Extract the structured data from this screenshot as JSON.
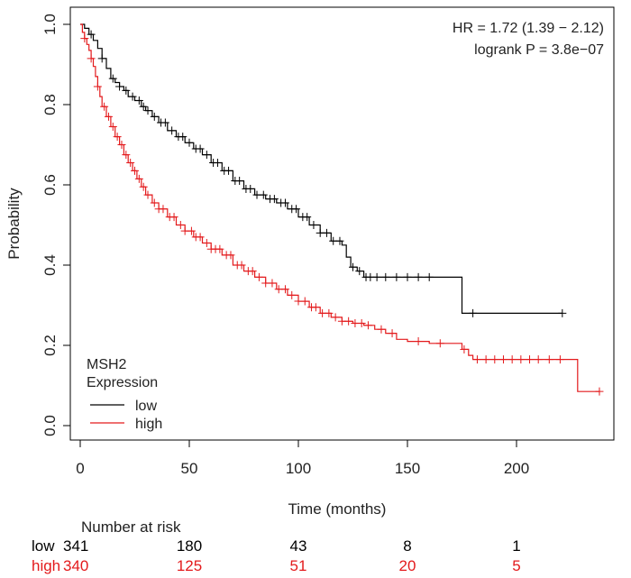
{
  "chart_data": {
    "type": "line",
    "subtype": "kaplan-meier survival curve",
    "xlabel": "Time (months)",
    "ylabel": "Probability",
    "xlim": [
      0,
      240
    ],
    "ylim": [
      -0.02,
      1.02
    ],
    "x_ticks": [
      0,
      50,
      100,
      150,
      200
    ],
    "x_tick_labels": [
      "0",
      "50",
      "100",
      "150",
      "200"
    ],
    "y_ticks": [
      0.0,
      0.2,
      0.4,
      0.6,
      0.8,
      1.0
    ],
    "y_tick_labels": [
      "0.0",
      "0.2",
      "0.4",
      "0.6",
      "0.8",
      "1.0"
    ],
    "grid": false,
    "annotations": {
      "hr": "HR = 1.72 (1.39 − 2.12)",
      "logrank": "logrank P = 3.8e−07"
    },
    "legend": {
      "placement": "bottom-left",
      "title_line1": "MSH2",
      "title_line2": "Expression",
      "entries": [
        "low",
        "high"
      ]
    },
    "series": [
      {
        "name": "low",
        "color": "#000000",
        "steps": [
          [
            0,
            1.0
          ],
          [
            2,
            0.99
          ],
          [
            4,
            0.975
          ],
          [
            6,
            0.96
          ],
          [
            8,
            0.94
          ],
          [
            10,
            0.915
          ],
          [
            12,
            0.89
          ],
          [
            14,
            0.865
          ],
          [
            16,
            0.855
          ],
          [
            18,
            0.845
          ],
          [
            20,
            0.835
          ],
          [
            22,
            0.82
          ],
          [
            25,
            0.81
          ],
          [
            28,
            0.795
          ],
          [
            30,
            0.785
          ],
          [
            33,
            0.77
          ],
          [
            36,
            0.755
          ],
          [
            40,
            0.735
          ],
          [
            44,
            0.72
          ],
          [
            48,
            0.705
          ],
          [
            52,
            0.69
          ],
          [
            56,
            0.675
          ],
          [
            60,
            0.655
          ],
          [
            65,
            0.635
          ],
          [
            70,
            0.61
          ],
          [
            75,
            0.59
          ],
          [
            80,
            0.575
          ],
          [
            85,
            0.565
          ],
          [
            90,
            0.555
          ],
          [
            95,
            0.54
          ],
          [
            100,
            0.52
          ],
          [
            105,
            0.5
          ],
          [
            110,
            0.48
          ],
          [
            115,
            0.46
          ],
          [
            120,
            0.45
          ],
          [
            122,
            0.42
          ],
          [
            124,
            0.395
          ],
          [
            127,
            0.385
          ],
          [
            130,
            0.37
          ],
          [
            135,
            0.37
          ],
          [
            174,
            0.37
          ],
          [
            175,
            0.28
          ],
          [
            221,
            0.28
          ]
        ],
        "censor_times": [
          5,
          10,
          15,
          18,
          21,
          24,
          27,
          29,
          31,
          34,
          37,
          39,
          42,
          45,
          47,
          50,
          53,
          55,
          58,
          61,
          63,
          66,
          68,
          71,
          73,
          76,
          78,
          81,
          84,
          87,
          89,
          92,
          94,
          97,
          99,
          102,
          104,
          107,
          110,
          113,
          116,
          119,
          125,
          128,
          131,
          133,
          136,
          140,
          145,
          150,
          155,
          160,
          180,
          221
        ]
      },
      {
        "name": "high",
        "color": "#e31a1c",
        "steps": [
          [
            0,
            1.0
          ],
          [
            1,
            0.98
          ],
          [
            2,
            0.965
          ],
          [
            3,
            0.95
          ],
          [
            4,
            0.935
          ],
          [
            5,
            0.915
          ],
          [
            6,
            0.895
          ],
          [
            7,
            0.87
          ],
          [
            8,
            0.845
          ],
          [
            9,
            0.82
          ],
          [
            10,
            0.795
          ],
          [
            12,
            0.77
          ],
          [
            14,
            0.745
          ],
          [
            16,
            0.72
          ],
          [
            18,
            0.7
          ],
          [
            20,
            0.675
          ],
          [
            22,
            0.655
          ],
          [
            24,
            0.635
          ],
          [
            26,
            0.615
          ],
          [
            28,
            0.595
          ],
          [
            30,
            0.575
          ],
          [
            33,
            0.555
          ],
          [
            36,
            0.54
          ],
          [
            40,
            0.52
          ],
          [
            44,
            0.5
          ],
          [
            48,
            0.485
          ],
          [
            52,
            0.47
          ],
          [
            56,
            0.455
          ],
          [
            60,
            0.44
          ],
          [
            65,
            0.425
          ],
          [
            70,
            0.4
          ],
          [
            75,
            0.385
          ],
          [
            80,
            0.37
          ],
          [
            85,
            0.355
          ],
          [
            90,
            0.34
          ],
          [
            95,
            0.325
          ],
          [
            100,
            0.31
          ],
          [
            105,
            0.295
          ],
          [
            110,
            0.28
          ],
          [
            115,
            0.27
          ],
          [
            120,
            0.26
          ],
          [
            125,
            0.255
          ],
          [
            130,
            0.25
          ],
          [
            135,
            0.24
          ],
          [
            140,
            0.23
          ],
          [
            145,
            0.215
          ],
          [
            150,
            0.21
          ],
          [
            160,
            0.205
          ],
          [
            170,
            0.205
          ],
          [
            175,
            0.19
          ],
          [
            178,
            0.175
          ],
          [
            180,
            0.165
          ],
          [
            190,
            0.165
          ],
          [
            227,
            0.165
          ],
          [
            228,
            0.085
          ],
          [
            238,
            0.085
          ]
        ],
        "censor_times": [
          2,
          5,
          8,
          11,
          13,
          15,
          17,
          19,
          21,
          23,
          25,
          27,
          29,
          31,
          34,
          36,
          38,
          41,
          43,
          46,
          48,
          51,
          53,
          55,
          58,
          60,
          62,
          64,
          67,
          69,
          72,
          74,
          77,
          79,
          82,
          85,
          88,
          91,
          94,
          97,
          100,
          103,
          106,
          108,
          111,
          114,
          117,
          120,
          123,
          126,
          129,
          132,
          138,
          143,
          155,
          165,
          176,
          182,
          186,
          190,
          194,
          198,
          202,
          206,
          210,
          215,
          220,
          238
        ]
      }
    ],
    "risk_table": {
      "title": "Number at risk",
      "times": [
        0,
        50,
        100,
        150,
        200
      ],
      "rows": [
        {
          "label": "low",
          "color": "#000000",
          "values": [
            "341",
            "180",
            "43",
            "8",
            "1"
          ]
        },
        {
          "label": "high",
          "color": "#e31a1c",
          "values": [
            "340",
            "125",
            "51",
            "20",
            "5"
          ]
        }
      ]
    }
  }
}
